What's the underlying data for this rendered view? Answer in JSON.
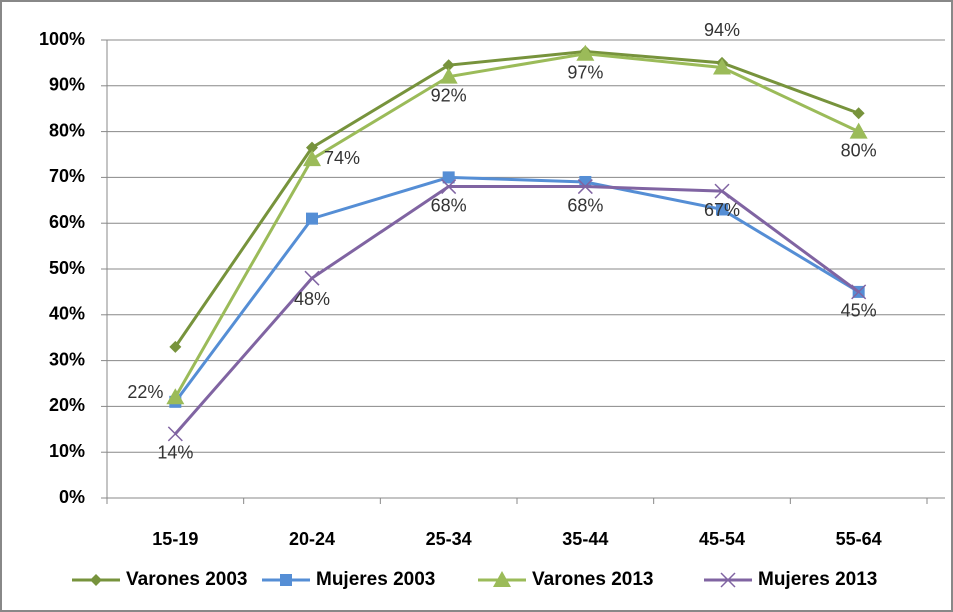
{
  "chart_data": {
    "type": "line",
    "categories": [
      "15-19",
      "20-24",
      "25-34",
      "35-44",
      "45-54",
      "55-64"
    ],
    "series": [
      {
        "name": "Varones 2003",
        "color": "#77933c",
        "marker": "diamond",
        "values": [
          33,
          76.5,
          94.5,
          97.5,
          95,
          84
        ]
      },
      {
        "name": "Mujeres 2003",
        "color": "#558ed5",
        "marker": "square",
        "values": [
          21,
          61,
          70,
          69,
          63,
          45
        ]
      },
      {
        "name": "Varones 2013",
        "color": "#9bbb59",
        "marker": "triangle",
        "values": [
          22,
          74,
          92,
          97,
          94,
          80
        ],
        "value_labels": [
          "22%",
          "74%",
          "92%",
          "97%",
          "94%",
          "80%"
        ]
      },
      {
        "name": "Mujeres 2013",
        "color": "#8064a2",
        "marker": "x",
        "values": [
          14,
          48,
          68,
          68,
          67,
          45
        ],
        "value_labels": [
          "14%",
          "48%",
          "68%",
          "68%",
          "67%",
          "45%"
        ]
      }
    ],
    "ylim": [
      0,
      100
    ],
    "yticks": [
      {
        "value": 0,
        "label": "0%"
      },
      {
        "value": 10,
        "label": "10%"
      },
      {
        "value": 20,
        "label": "20%"
      },
      {
        "value": 30,
        "label": "30%"
      },
      {
        "value": 40,
        "label": "40%"
      },
      {
        "value": 50,
        "label": "50%"
      },
      {
        "value": 60,
        "label": "60%"
      },
      {
        "value": 70,
        "label": "70%"
      },
      {
        "value": 80,
        "label": "80%"
      },
      {
        "value": 90,
        "label": "90%"
      },
      {
        "value": 100,
        "label": "100%"
      }
    ],
    "grid": true,
    "legend": "bottom"
  }
}
